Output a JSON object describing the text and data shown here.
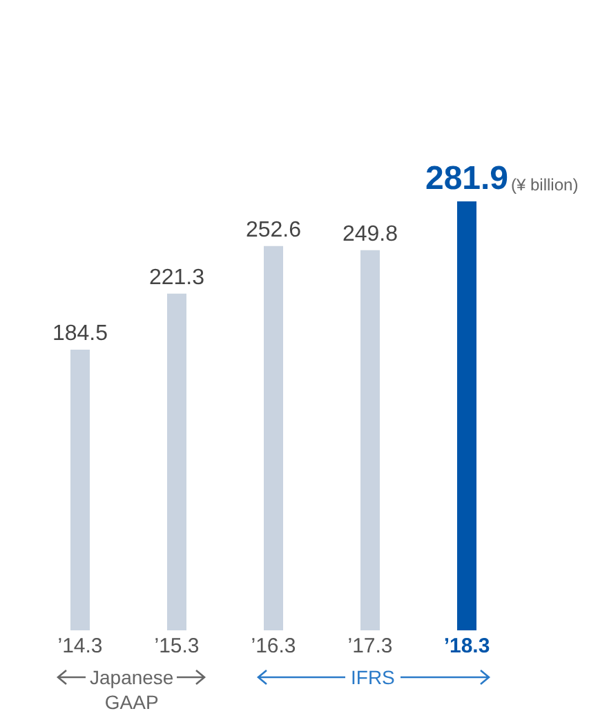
{
  "chart_data": {
    "type": "bar",
    "categories": [
      "’14.3",
      "’15.3",
      "’16.3",
      "’17.3",
      "’18.3"
    ],
    "values": [
      184.5,
      221.3,
      252.6,
      249.8,
      281.9
    ],
    "colors": [
      "#c9d3e0",
      "#c9d3e0",
      "#c9d3e0",
      "#c9d3e0",
      "#0055aa"
    ],
    "data_labels": true,
    "annotations": [
      "(¥ billion)",
      "Japanese GAAP",
      "IFRS"
    ]
  }
}
